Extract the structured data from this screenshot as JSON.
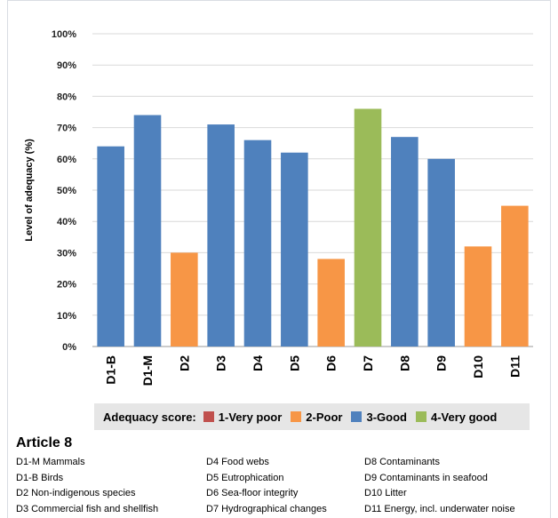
{
  "chart_data": {
    "type": "bar",
    "ylabel": "Level of adequacy (%)",
    "ylim": [
      0,
      100
    ],
    "yticks": [
      "0%",
      "10%",
      "20%",
      "30%",
      "40%",
      "50%",
      "60%",
      "70%",
      "80%",
      "90%",
      "100%"
    ],
    "grid": true,
    "categories": [
      "D1-B",
      "D1-M",
      "D2",
      "D3",
      "D4",
      "D5",
      "D6",
      "D7",
      "D8",
      "D9",
      "D10",
      "D11"
    ],
    "values": [
      64,
      74,
      30,
      71,
      66,
      62,
      28,
      76,
      67,
      60,
      32,
      45
    ],
    "scores": [
      "3-Good",
      "3-Good",
      "2-Poor",
      "3-Good",
      "3-Good",
      "3-Good",
      "2-Poor",
      "4-Very good",
      "3-Good",
      "3-Good",
      "2-Poor",
      "2-Poor"
    ],
    "legend_title": "Adequacy score:",
    "legend": [
      {
        "label": "1-Very poor",
        "color": "#c0504d"
      },
      {
        "label": "2-Poor",
        "color": "#f79646"
      },
      {
        "label": "3-Good",
        "color": "#4f81bd"
      },
      {
        "label": "4-Very good",
        "color": "#9bbb59"
      }
    ],
    "legend_position": "bottom"
  },
  "glossary": {
    "title": "Article 8",
    "columns": [
      [
        "D1-M Mammals",
        "D1-B Birds",
        "D2 Non-indigenous species",
        "D3 Commercial fish and shellfish"
      ],
      [
        "D4 Food webs",
        "D5 Eutrophication",
        "D6 Sea-floor integrity",
        "D7 Hydrographical changes"
      ],
      [
        "D8 Contaminants",
        "D9 Contaminants in seafood",
        "D10 Litter",
        "D11 Energy, incl. underwater noise"
      ]
    ]
  }
}
